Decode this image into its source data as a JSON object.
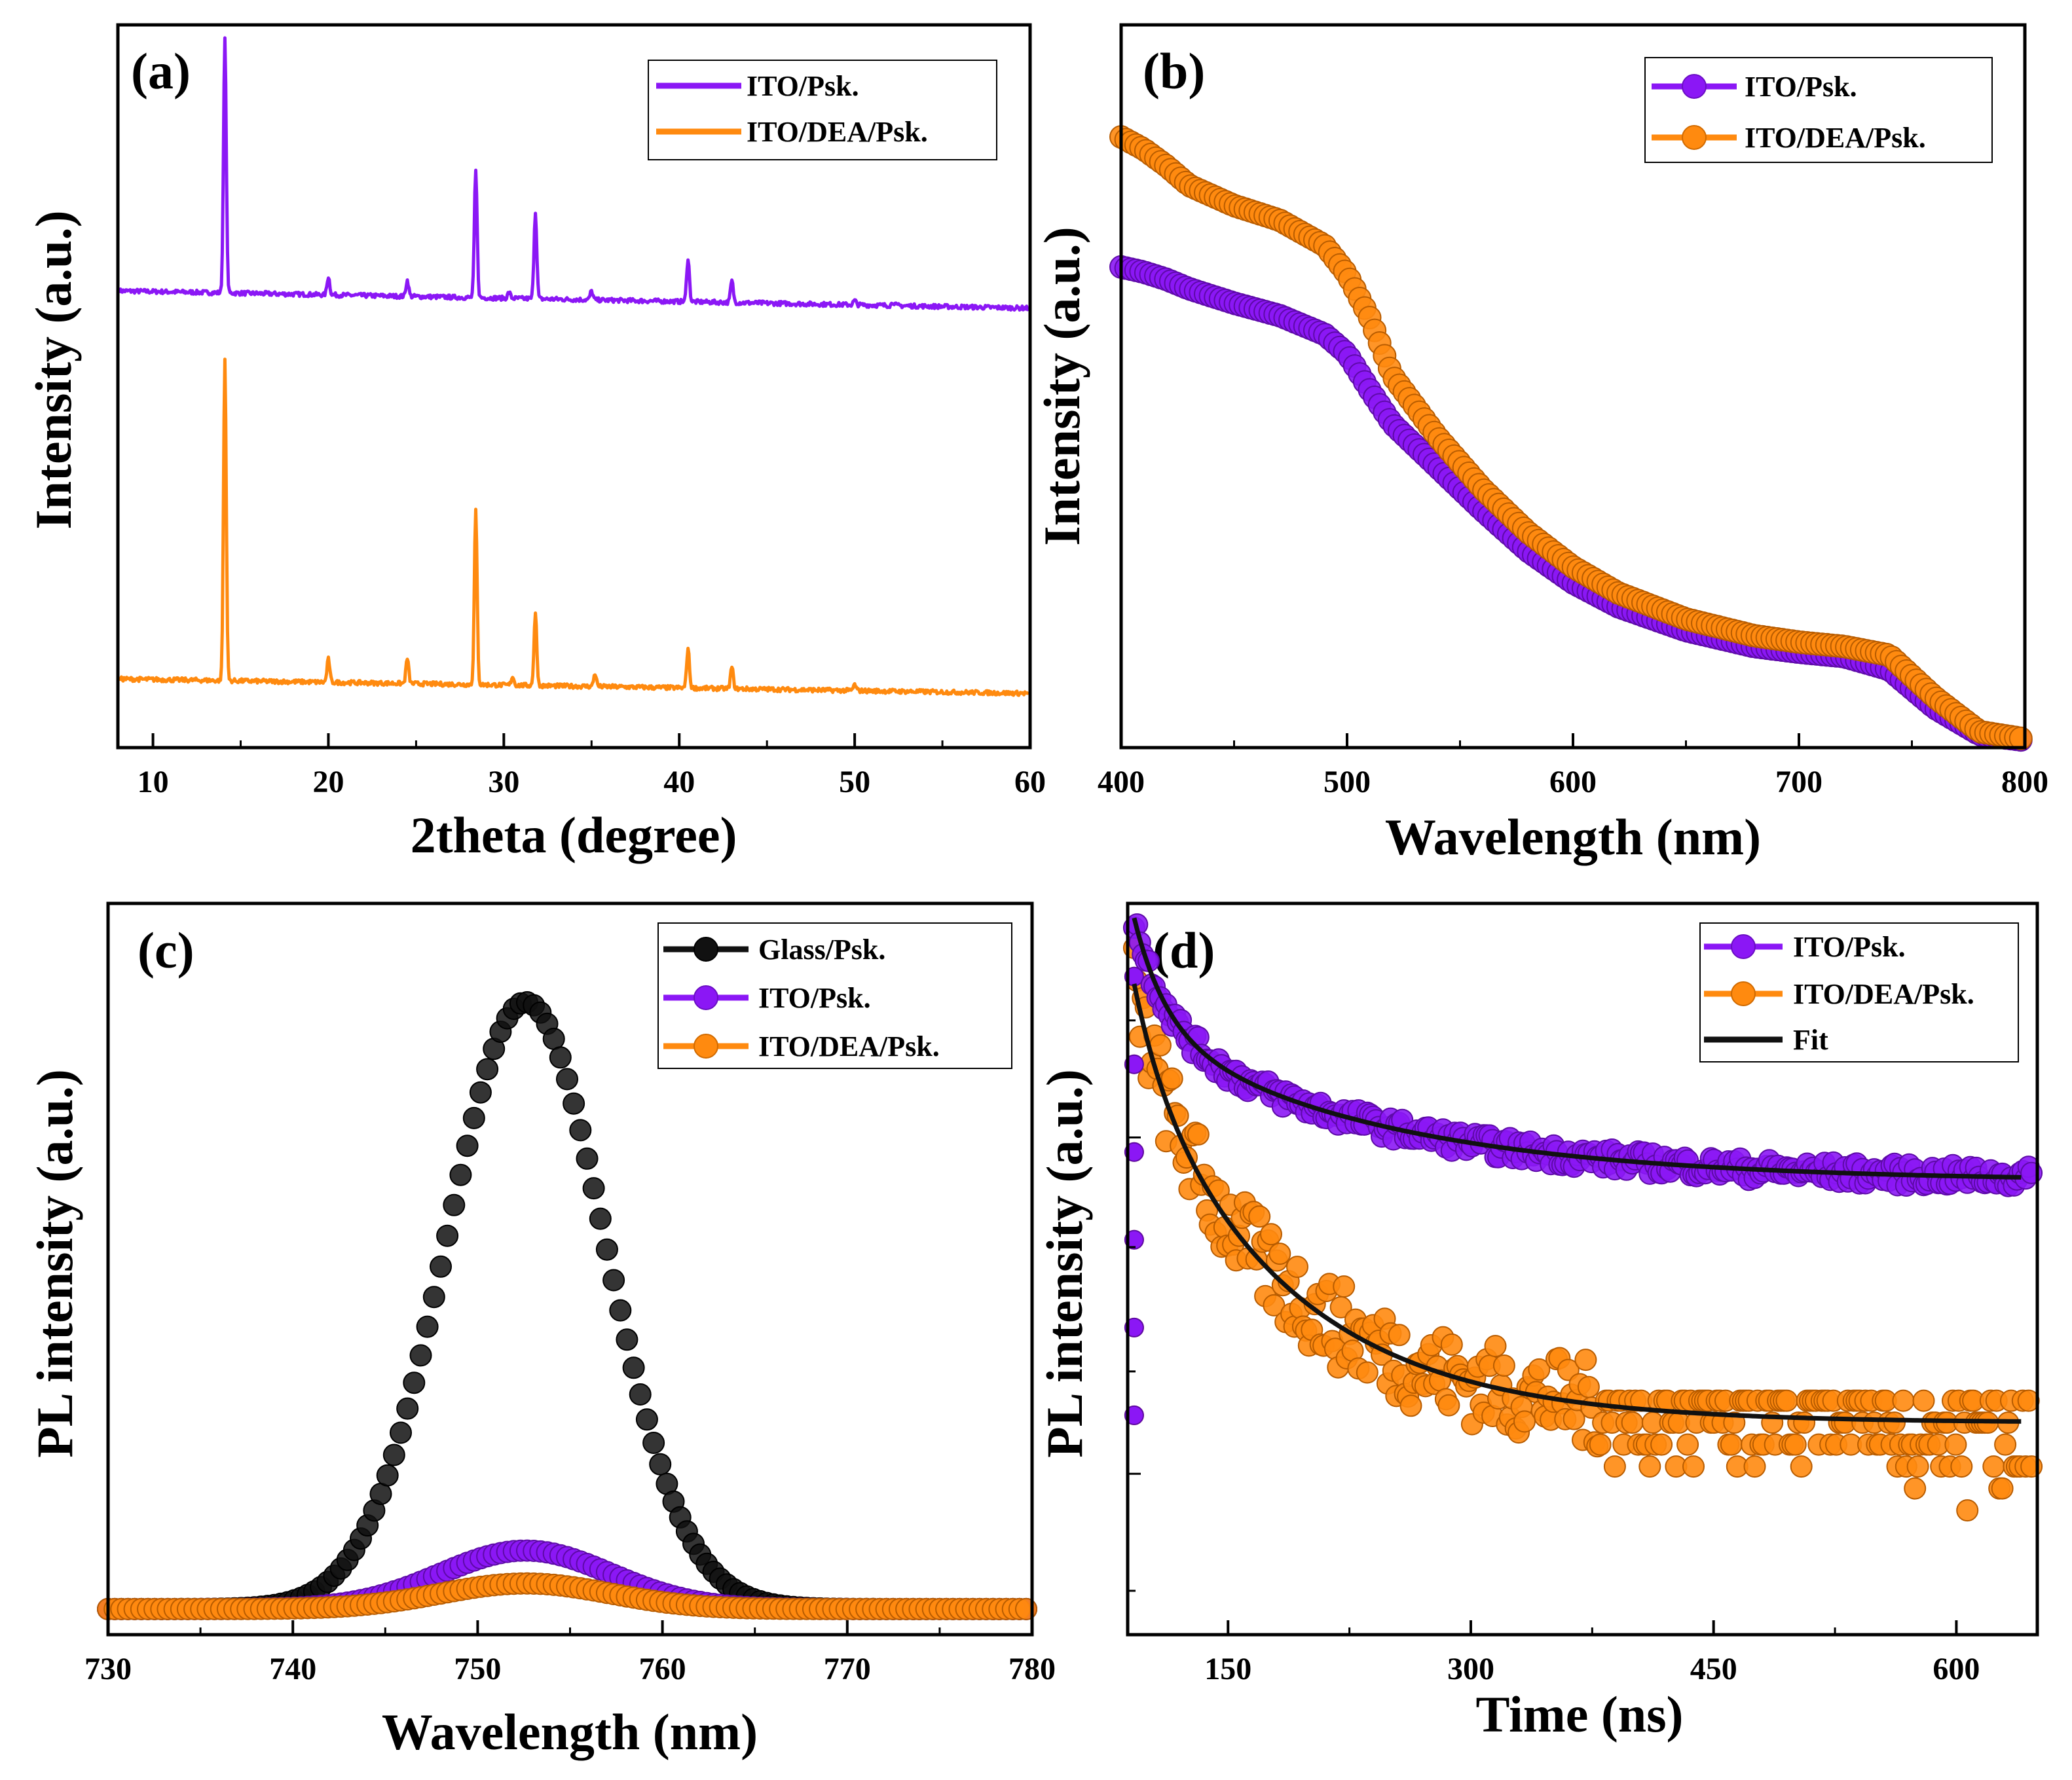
{
  "colors": {
    "purple": "#8B17F5",
    "orange": "#FF8A0F",
    "black": "#111111",
    "axis": "#000000"
  },
  "chart_data": [
    {
      "id": "a",
      "panel_label": "(a)",
      "type": "line",
      "title": "",
      "xlabel": "2theta (degree)",
      "ylabel": "Intensity (a.u.)",
      "xlim": [
        8,
        60
      ],
      "ylim": [
        0,
        1
      ],
      "xticks": [
        10,
        20,
        30,
        40,
        50,
        60
      ],
      "xtick_labels": [
        "10",
        "20",
        "30",
        "40",
        "50",
        "60"
      ],
      "yticks_shown": false,
      "legend_position": "top-right",
      "legend": [
        "ITO/Psk.",
        "ITO/DEA/Psk."
      ],
      "series": [
        {
          "name": "ITO/Psk.",
          "color": "purple",
          "marker": "line",
          "baseline_start": 0.632,
          "baseline_end": 0.608,
          "peaks": [
            [
              14.1,
              0.352
            ],
            [
              20.0,
              0.025
            ],
            [
              24.5,
              0.022
            ],
            [
              28.4,
              0.175
            ],
            [
              30.3,
              0.008
            ],
            [
              31.8,
              0.12
            ],
            [
              35.0,
              0.012
            ],
            [
              40.5,
              0.06
            ],
            [
              43.0,
              0.03
            ],
            [
              50.0,
              0.006
            ],
            [
              52.2,
              0.005
            ]
          ]
        },
        {
          "name": "ITO/DEA/Psk.",
          "color": "orange",
          "marker": "line",
          "baseline_start": 0.095,
          "baseline_end": 0.075,
          "peaks": [
            [
              14.1,
              0.445
            ],
            [
              20.0,
              0.032
            ],
            [
              24.5,
              0.035
            ],
            [
              28.4,
              0.24
            ],
            [
              30.5,
              0.012
            ],
            [
              31.8,
              0.1
            ],
            [
              35.2,
              0.018
            ],
            [
              40.5,
              0.055
            ],
            [
              43.0,
              0.03
            ],
            [
              50.0,
              0.008
            ]
          ]
        }
      ]
    },
    {
      "id": "b",
      "panel_label": "(b)",
      "type": "line",
      "title": "",
      "xlabel": "Wavelength (nm)",
      "ylabel": "Intensity (a.u.)",
      "xlim": [
        400,
        800
      ],
      "ylim": [
        0,
        1
      ],
      "xticks": [
        400,
        500,
        600,
        700,
        800
      ],
      "xtick_labels": [
        "400",
        "500",
        "600",
        "700",
        "800"
      ],
      "yticks_shown": false,
      "legend_position": "top-right",
      "legend": [
        "ITO/Psk.",
        "ITO/DEA/Psk."
      ],
      "series": [
        {
          "name": "ITO/Psk.",
          "color": "purple",
          "marker": "circle",
          "x": [
            400,
            410,
            420,
            430,
            450,
            470,
            490,
            500,
            510,
            520,
            540,
            560,
            580,
            600,
            620,
            650,
            680,
            700,
            720,
            740,
            760,
            780,
            800
          ],
          "y": [
            0.665,
            0.658,
            0.648,
            0.635,
            0.615,
            0.598,
            0.572,
            0.545,
            0.495,
            0.448,
            0.388,
            0.328,
            0.272,
            0.228,
            0.195,
            0.162,
            0.14,
            0.132,
            0.126,
            0.108,
            0.055,
            0.018,
            0.01
          ]
        },
        {
          "name": "ITO/DEA/Psk.",
          "color": "orange",
          "marker": "circle",
          "x": [
            400,
            410,
            420,
            430,
            450,
            470,
            490,
            500,
            510,
            520,
            540,
            560,
            580,
            600,
            620,
            650,
            680,
            700,
            720,
            740,
            760,
            780,
            800
          ],
          "y": [
            0.845,
            0.828,
            0.805,
            0.778,
            0.75,
            0.73,
            0.695,
            0.655,
            0.595,
            0.515,
            0.43,
            0.358,
            0.298,
            0.25,
            0.214,
            0.178,
            0.155,
            0.146,
            0.14,
            0.128,
            0.07,
            0.022,
            0.012
          ]
        }
      ]
    },
    {
      "id": "c",
      "panel_label": "(c)",
      "type": "line",
      "title": "",
      "xlabel": "Wavelength (nm)",
      "ylabel": "PL intensity (a.u.)",
      "xlim": [
        730,
        780
      ],
      "ylim": [
        0,
        1
      ],
      "xticks": [
        730,
        740,
        750,
        760,
        770,
        780
      ],
      "xtick_labels": [
        "730",
        "740",
        "750",
        "760",
        "770",
        "780"
      ],
      "yticks_shown": false,
      "legend_position": "top-right",
      "legend": [
        "Glass/Psk.",
        "ITO/Psk.",
        "ITO/DEA/Psk."
      ],
      "series": [
        {
          "name": "Glass/Psk.",
          "color": "black",
          "marker": "circle",
          "baseline": 0.035,
          "amplitude": 0.83,
          "center": 752.6,
          "sigma": 4.3
        },
        {
          "name": "ITO/Psk.",
          "color": "purple",
          "marker": "circle",
          "baseline": 0.035,
          "amplitude": 0.08,
          "center": 752.6,
          "sigma": 4.6
        },
        {
          "name": "ITO/DEA/Psk.",
          "color": "orange",
          "marker": "circle",
          "baseline": 0.035,
          "amplitude": 0.035,
          "center": 752.6,
          "sigma": 4.6
        }
      ]
    },
    {
      "id": "d",
      "panel_label": "(d)",
      "type": "scatter",
      "title": "",
      "xlabel": "Time (ns)",
      "ylabel": "PL intensity (a.u.)",
      "xlim": [
        88,
        650
      ],
      "ylim": [
        0,
        1
      ],
      "xticks": [
        150,
        300,
        450,
        600
      ],
      "xtick_labels": [
        "150",
        "300",
        "450",
        "600"
      ],
      "yscale": "log",
      "yticks_shown": false,
      "legend_position": "top-right",
      "legend": [
        "ITO/Psk.",
        "ITO/DEA/Psk.",
        "Fit"
      ],
      "series": [
        {
          "name": "ITO/Psk.",
          "color": "purple",
          "marker": "circle",
          "x_start": 92,
          "y0": 0.98,
          "fast_amp": 0.15,
          "fast_tau": 20,
          "slow_amp": 0.21,
          "slow_tau": 150,
          "plateau": 0.62,
          "noise": 0.015
        },
        {
          "name": "ITO/DEA/Psk.",
          "color": "orange",
          "marker": "circle",
          "x_start": 92,
          "y0": 0.98,
          "fast_amp": 0.1,
          "fast_tau": 18,
          "slow_amp": 0.5,
          "slow_tau": 95,
          "plateau": 0.29,
          "noise": 0.06,
          "floor": 0.14
        },
        {
          "name": "Fit",
          "color": "black",
          "marker": "line",
          "fits": [
            {
              "x_start": 92,
              "fast_amp": 0.15,
              "fast_tau": 20,
              "slow_amp": 0.21,
              "slow_tau": 150,
              "plateau": 0.62
            },
            {
              "x_start": 92,
              "fast_amp": 0.1,
              "fast_tau": 18,
              "slow_amp": 0.5,
              "slow_tau": 95,
              "plateau": 0.29
            }
          ]
        }
      ]
    }
  ]
}
